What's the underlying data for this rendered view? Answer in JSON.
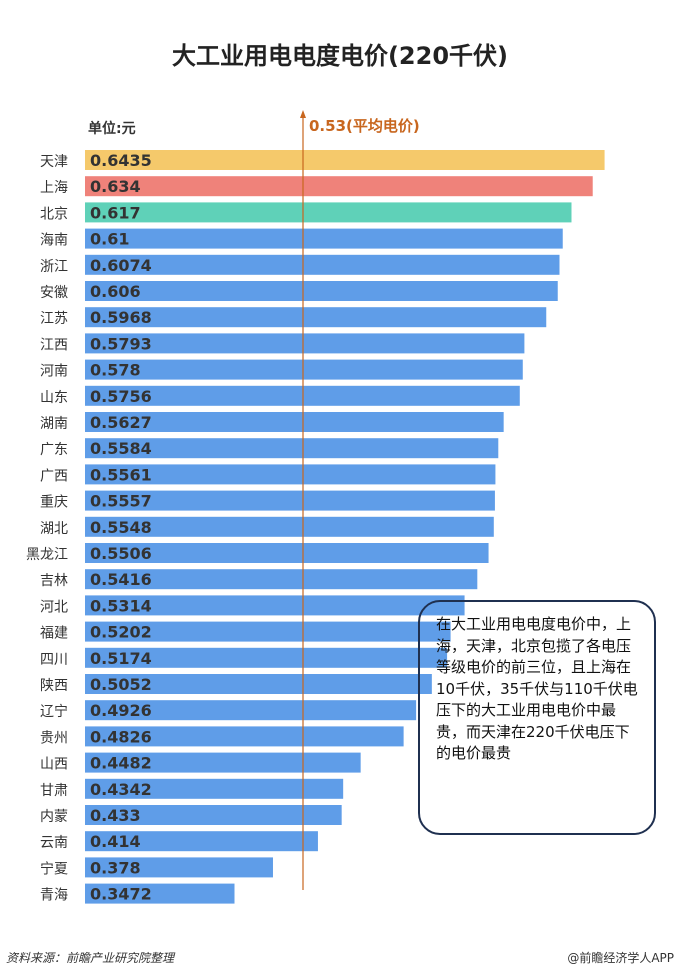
{
  "chart_data": {
    "type": "bar",
    "orientation": "horizontal",
    "title": "大工业用电电度电价(220千伏)",
    "unit_label": "单位:元",
    "categories": [
      "天津",
      "上海",
      "北京",
      "海南",
      "浙江",
      "安徽",
      "江苏",
      "江西",
      "河南",
      "山东",
      "湖南",
      "广东",
      "广西",
      "重庆",
      "湖北",
      "黑龙江",
      "吉林",
      "河北",
      "福建",
      "四川",
      "陕西",
      "辽宁",
      "贵州",
      "山西",
      "甘肃",
      "内蒙",
      "云南",
      "宁夏",
      "青海"
    ],
    "values": [
      0.6435,
      0.634,
      0.617,
      0.61,
      0.6074,
      0.606,
      0.5968,
      0.5793,
      0.578,
      0.5756,
      0.5627,
      0.5584,
      0.5561,
      0.5557,
      0.5548,
      0.5506,
      0.5416,
      0.5314,
      0.5202,
      0.5174,
      0.5052,
      0.4926,
      0.4826,
      0.4482,
      0.4342,
      0.433,
      0.414,
      0.378,
      0.3472
    ],
    "value_labels": [
      "0.6435",
      "0.634",
      "0.617",
      "0.61",
      "0.6074",
      "0.606",
      "0.5968",
      "0.5793",
      "0.578",
      "0.5756",
      "0.5627",
      "0.5584",
      "0.5561",
      "0.5557",
      "0.5548",
      "0.5506",
      "0.5416",
      "0.5314",
      "0.5202",
      "0.5174",
      "0.5052",
      "0.4926",
      "0.4826",
      "0.4482",
      "0.4342",
      "0.433",
      "0.414",
      "0.378",
      "0.3472"
    ],
    "highlight_colors": [
      "#f5c96b",
      "#ef827a",
      "#5fd1b8"
    ],
    "bar_color": "#5f9de8",
    "reference_line": {
      "value": 0.53,
      "label": "0.53(平均电价)",
      "color": "#c8661e"
    },
    "grid": false
  },
  "note": "在大工业用电电度电价中，上海，天津，北京包揽了各电压等级电价的前三位，且上海在10千伏，35千伏与110千伏电压下的大工业用电电价中最贵，而天津在220千伏电压下的电价最贵",
  "footer": {
    "source": "资料来源：前瞻产业研究院整理",
    "brand": "@前瞻经济学人APP"
  }
}
